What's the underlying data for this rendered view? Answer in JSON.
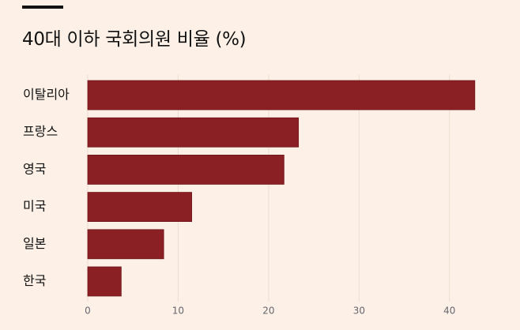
{
  "title": "40대 이하 국회의원 비율 (%)",
  "colors": {
    "background": "#fdf1e7",
    "bar": "#8b2024",
    "grid": "#ecdcd0",
    "tick_text": "#66666f"
  },
  "chart_data": {
    "type": "bar",
    "orientation": "horizontal",
    "title": "40대 이하 국회의원 비율 (%)",
    "categories": [
      "이탈리아",
      "프랑스",
      "영국",
      "미국",
      "일본",
      "한국"
    ],
    "values": [
      42.8,
      23.3,
      21.7,
      11.5,
      8.4,
      3.7
    ],
    "xlim": [
      0,
      45
    ],
    "xticks": [
      0,
      10,
      20,
      30,
      40
    ],
    "grid": "vertical",
    "legend": "none"
  }
}
